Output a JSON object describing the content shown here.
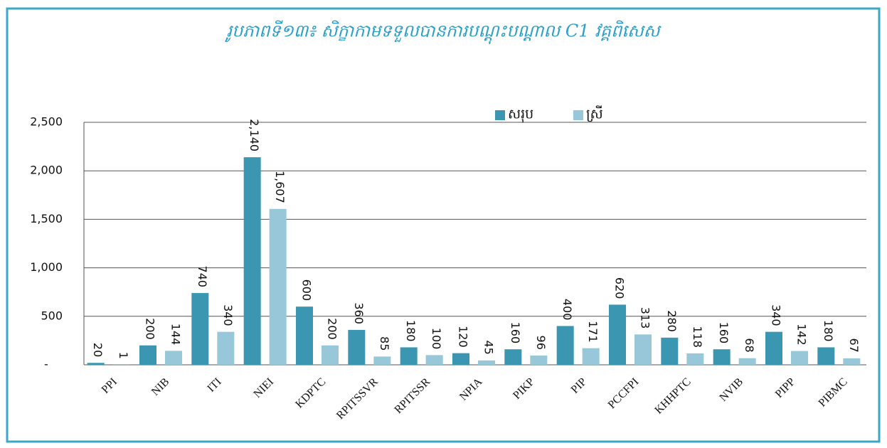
{
  "chart_data": {
    "type": "bar",
    "title": "រូបភាពទី១៣៖ សិក្ខាកាមទទួលបានការបណ្តុះបណ្តាល C1 វគ្គពិសេស",
    "categories": [
      "PPI",
      "NIB",
      "ITI",
      "NIEI",
      "KDPTC",
      "RPITSSVR",
      "RPITSSR",
      "NPIA",
      "PIKP",
      "PIP",
      "PCCFPI",
      "KHHPTC",
      "NVIB",
      "PIPP",
      "PIBMC"
    ],
    "series": [
      {
        "name": "សរុប",
        "color": "#3b97b1",
        "values": [
          20,
          200,
          740,
          2140,
          600,
          360,
          180,
          120,
          160,
          400,
          620,
          280,
          160,
          340,
          180
        ],
        "value_labels": [
          "20",
          "200",
          "740",
          "2,140",
          "600",
          "360",
          "180",
          "120",
          "160",
          "400",
          "620",
          "280",
          "160",
          "340",
          "180"
        ]
      },
      {
        "name": "ស្រី",
        "color": "#97c7d9",
        "values": [
          1,
          144,
          340,
          1607,
          200,
          85,
          100,
          45,
          96,
          171,
          313,
          118,
          68,
          142,
          67
        ],
        "value_labels": [
          "1",
          "144",
          "340",
          "1,607",
          "200",
          "85",
          "100",
          "45",
          "96",
          "171",
          "313",
          "118",
          "68",
          "142",
          "67"
        ]
      }
    ],
    "ylim": [
      0,
      2500
    ],
    "yticks": [
      {
        "value": 0,
        "label": "-"
      },
      500,
      {
        "value": 1000,
        "label": "1,000"
      },
      {
        "value": 1500,
        "label": "1,500"
      },
      {
        "value": 2000,
        "label": "2,000"
      },
      {
        "value": 2500,
        "label": "2,500"
      }
    ],
    "grid": true,
    "legend": "top"
  }
}
